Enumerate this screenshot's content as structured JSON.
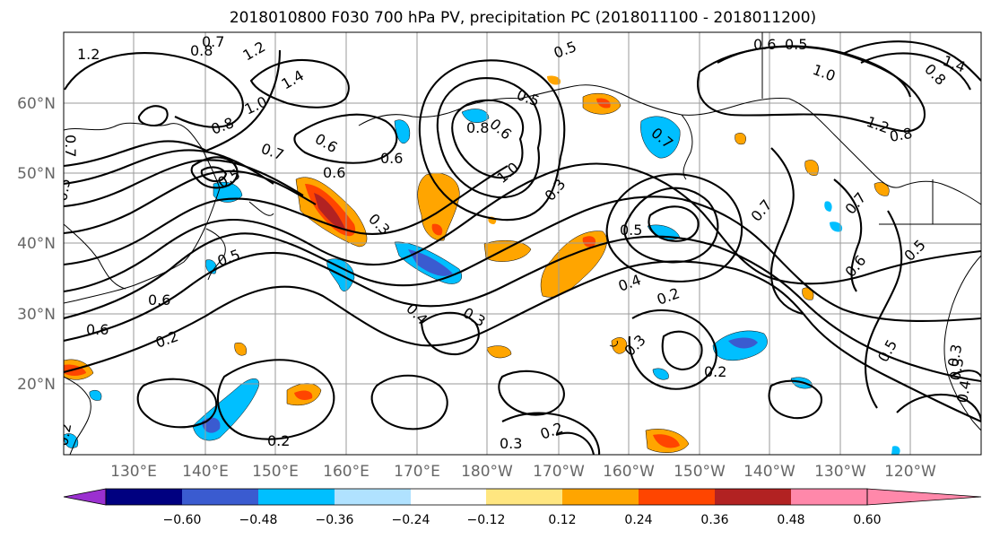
{
  "title": "2018010800 F030 700 hPa PV, precipitation PC (2018011100 - 2018011200)",
  "lat_labels": [
    "60°N",
    "50°N",
    "40°N",
    "30°N",
    "20°N"
  ],
  "lon_labels": [
    "130°E",
    "140°E",
    "150°E",
    "160°E",
    "170°E",
    "180°W",
    "170°W",
    "160°W",
    "150°W",
    "140°W",
    "130°W",
    "120°W"
  ],
  "colorbar": {
    "ticks": [
      "−0.60",
      "−0.48",
      "−0.36",
      "−0.24",
      "−0.12",
      "0.12",
      "0.24",
      "0.36",
      "0.48",
      "0.60"
    ],
    "colors": [
      "#9b30d0",
      "#000080",
      "#3a5bd0",
      "#00bfff",
      "#b0e2ff",
      "#ffffff",
      "#ffe680",
      "#ffa500",
      "#ff4500",
      "#b22222",
      "#ff88aa"
    ]
  },
  "contour_labels": [
    "1.2",
    "0.7",
    "0.8",
    "1.2",
    "1.4",
    "0.6",
    "0.5",
    "1.0",
    "0.8",
    "0.7",
    "0.6",
    "0.6",
    "0.8",
    "1.0",
    "0.5",
    "0.3",
    "0.5",
    "0.6",
    "0.5",
    "0.4",
    "0.6",
    "0.6",
    "0.2",
    "0.4",
    "0.3",
    "0.3",
    "0.2",
    "0.5",
    "0.7",
    "0.7",
    "0.6",
    "0.5",
    "0.3",
    "0.2",
    "0.2",
    "0.3",
    "0.2",
    "0.5",
    "0.3",
    "0.4",
    "1.0",
    "0.8",
    "1.4",
    "1.2",
    "0.8",
    "0.6",
    "0.5",
    "0.7",
    "0.7",
    "0.5",
    "0.2",
    "0.3"
  ]
}
